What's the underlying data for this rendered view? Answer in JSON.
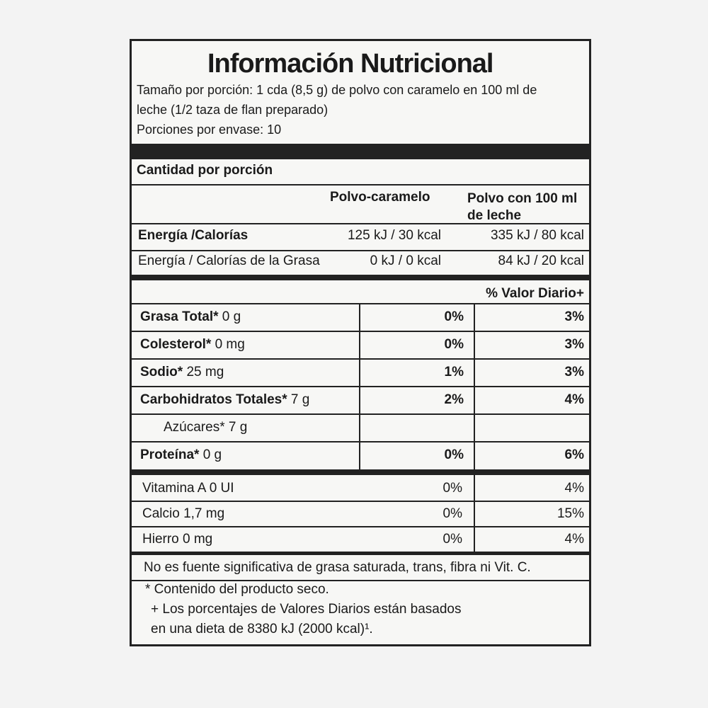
{
  "header": {
    "title": "Información Nutricional",
    "serving": [
      "Tamaño por porción: 1 cda (8,5 g) de polvo con caramelo en 100 ml de",
      "leche (1/2 taza de flan preparado)",
      "Porciones por envase: 10"
    ]
  },
  "amount_header": "Cantidad por porción",
  "columns": {
    "powder": "Polvo-caramelo",
    "milk": [
      "Polvo con 100 ml",
      "de leche"
    ]
  },
  "energy": [
    {
      "name": "Energía /Calorías",
      "powder": "125 kJ / 30 kcal",
      "milk": "335 kJ / 80 kcal"
    },
    {
      "name": "Energía / Calorías de la Grasa",
      "powder": "0 kJ / 0 kcal",
      "milk": "84 kJ / 20 kcal"
    }
  ],
  "dv_header": "% Valor Diario+",
  "nutrients": [
    {
      "name": "Grasa Total*",
      "amount": "0 g",
      "powder": "0%",
      "milk": "3%"
    },
    {
      "name": "Colesterol*",
      "amount": "0 mg",
      "powder": "0%",
      "milk": "3%"
    },
    {
      "name": "Sodio*",
      "amount": "25 mg",
      "powder": "1%",
      "milk": "3%"
    },
    {
      "name": "Carbohidratos Totales*",
      "amount": "7 g",
      "powder": "2%",
      "milk": "4%"
    },
    {
      "name": "Azúcares*",
      "amount": "7 g",
      "powder": null,
      "milk": null
    },
    {
      "name": "Proteína*",
      "amount": "0 g",
      "powder": "0%",
      "milk": "6%"
    }
  ],
  "vitamins": [
    {
      "name": "Vitamina A 0 UI",
      "powder": "0%",
      "milk": "4%"
    },
    {
      "name": "Calcio 1,7 mg",
      "powder": "0%",
      "milk": "15%"
    },
    {
      "name": "Hierro 0 mg",
      "powder": "0%",
      "milk": "4%"
    }
  ],
  "note": "No es fuente significativa de grasa saturada, trans, fibra ni Vit. C.",
  "footnotes": [
    "* Contenido del producto seco.",
    "+ Los porcentajes de Valores Diarios están basados",
    "en una dieta de 8380 kJ (2000 kcal)¹."
  ]
}
